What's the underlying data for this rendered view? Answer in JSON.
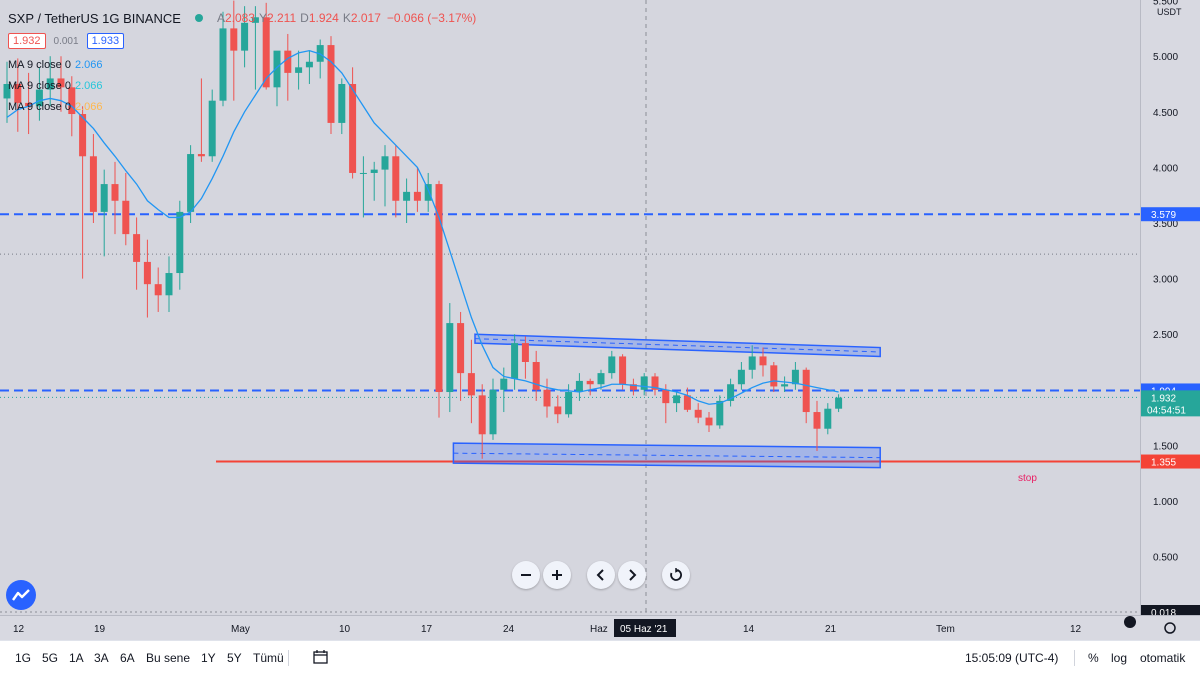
{
  "header": {
    "symbol": "SXP / TetherUS  1G  BINANCE",
    "ohlc": {
      "a_lbl": "A",
      "a": "2.083",
      "y_lbl": "Y",
      "y": "2.211",
      "d_lbl": "D",
      "d": "1.924",
      "k_lbl": "K",
      "k": "2.017",
      "chg": "−0.066 (−3.17%)"
    },
    "sell_price": "1.932",
    "spread": "0.001",
    "buy_price": "1.933"
  },
  "indicators": [
    {
      "label": "MA 9 close 0",
      "value": "2.066",
      "color": "#2196f3"
    },
    {
      "label": "MA 9 close 0",
      "value": "2.066",
      "color": "#26c6da"
    },
    {
      "label": "MA 9 close 0",
      "value": "2.066",
      "color": "#ffb74d"
    }
  ],
  "price_axis": {
    "currency": "USDT",
    "ticks": [
      "5.500",
      "5.000",
      "4.500",
      "4.000",
      "3.500",
      "3.000",
      "2.500",
      "2.000",
      "1.500",
      "1.000",
      "0.500"
    ],
    "bottom_tick": "0.018"
  },
  "price_labels": {
    "line_3579": "3.579",
    "line_1994": "1.994",
    "current_price": "1.932",
    "countdown": "04:54:51",
    "stop_price": "1.355"
  },
  "annotations": {
    "stop_text": "stop"
  },
  "time_axis": {
    "labels": [
      "12",
      "19",
      "May",
      "10",
      "17",
      "24",
      "Haz",
      "14",
      "21",
      "Tem",
      "12"
    ],
    "crosshair_date": "05 Haz '21"
  },
  "bottom_bar": {
    "timeframes": [
      "1G",
      "5G",
      "1A",
      "3A",
      "6A",
      "Bu sene",
      "1Y",
      "5Y",
      "Tümü"
    ],
    "clock": "15:05:09 (UTC-4)",
    "percent": "%",
    "log": "log",
    "auto": "otomatik"
  },
  "colors": {
    "up": "#26a69a",
    "down": "#ef5350",
    "ma": "#2196f3",
    "hline": "#2962ff",
    "stop": "#f44336",
    "channel": "#2962ff"
  },
  "chart_data": {
    "type": "candlestick",
    "title": "SXP / TetherUS  1G  BINANCE",
    "interval": "1 day",
    "ylim": [
      0.018,
      5.55
    ],
    "candles": [
      {
        "o": 4.62,
        "h": 4.95,
        "l": 4.4,
        "c": 4.75
      },
      {
        "o": 4.75,
        "h": 4.98,
        "l": 4.32,
        "c": 4.58
      },
      {
        "o": 4.58,
        "h": 4.85,
        "l": 4.3,
        "c": 4.55
      },
      {
        "o": 4.55,
        "h": 4.9,
        "l": 4.42,
        "c": 4.7
      },
      {
        "o": 4.7,
        "h": 5.0,
        "l": 4.55,
        "c": 4.8
      },
      {
        "o": 4.8,
        "h": 5.0,
        "l": 4.5,
        "c": 4.72
      },
      {
        "o": 4.72,
        "h": 4.82,
        "l": 4.28,
        "c": 4.48
      },
      {
        "o": 4.48,
        "h": 4.55,
        "l": 3.0,
        "c": 4.1
      },
      {
        "o": 4.1,
        "h": 4.3,
        "l": 3.5,
        "c": 3.6
      },
      {
        "o": 3.6,
        "h": 3.98,
        "l": 3.2,
        "c": 3.85
      },
      {
        "o": 3.85,
        "h": 4.05,
        "l": 3.4,
        "c": 3.7
      },
      {
        "o": 3.7,
        "h": 3.95,
        "l": 3.3,
        "c": 3.4
      },
      {
        "o": 3.4,
        "h": 3.55,
        "l": 2.9,
        "c": 3.15
      },
      {
        "o": 3.15,
        "h": 3.35,
        "l": 2.65,
        "c": 2.95
      },
      {
        "o": 2.95,
        "h": 3.1,
        "l": 2.7,
        "c": 2.85
      },
      {
        "o": 2.85,
        "h": 3.2,
        "l": 2.7,
        "c": 3.05
      },
      {
        "o": 3.05,
        "h": 3.7,
        "l": 2.9,
        "c": 3.6
      },
      {
        "o": 3.6,
        "h": 4.2,
        "l": 3.5,
        "c": 4.12
      },
      {
        "o": 4.12,
        "h": 4.8,
        "l": 4.05,
        "c": 4.1
      },
      {
        "o": 4.1,
        "h": 4.7,
        "l": 4.05,
        "c": 4.6
      },
      {
        "o": 4.6,
        "h": 5.4,
        "l": 4.55,
        "c": 5.25
      },
      {
        "o": 5.25,
        "h": 5.5,
        "l": 4.6,
        "c": 5.05
      },
      {
        "o": 5.05,
        "h": 5.45,
        "l": 4.9,
        "c": 5.3
      },
      {
        "o": 5.3,
        "h": 5.45,
        "l": 4.7,
        "c": 5.35
      },
      {
        "o": 5.35,
        "h": 5.48,
        "l": 4.7,
        "c": 4.72
      },
      {
        "o": 4.72,
        "h": 5.0,
        "l": 4.55,
        "c": 5.05
      },
      {
        "o": 5.05,
        "h": 5.2,
        "l": 4.6,
        "c": 4.85
      },
      {
        "o": 4.85,
        "h": 5.05,
        "l": 4.7,
        "c": 4.9
      },
      {
        "o": 4.9,
        "h": 5.05,
        "l": 4.75,
        "c": 4.95
      },
      {
        "o": 4.95,
        "h": 5.15,
        "l": 4.8,
        "c": 5.1
      },
      {
        "o": 5.1,
        "h": 5.18,
        "l": 4.3,
        "c": 4.4
      },
      {
        "o": 4.4,
        "h": 4.8,
        "l": 4.3,
        "c": 4.75
      },
      {
        "o": 4.75,
        "h": 4.9,
        "l": 3.9,
        "c": 3.95
      },
      {
        "o": 3.95,
        "h": 4.1,
        "l": 3.55,
        "c": 3.95
      },
      {
        "o": 3.95,
        "h": 4.05,
        "l": 3.7,
        "c": 3.98
      },
      {
        "o": 3.98,
        "h": 4.2,
        "l": 3.65,
        "c": 4.1
      },
      {
        "o": 4.1,
        "h": 4.2,
        "l": 3.55,
        "c": 3.7
      },
      {
        "o": 3.7,
        "h": 3.9,
        "l": 3.5,
        "c": 3.78
      },
      {
        "o": 3.78,
        "h": 4.0,
        "l": 3.6,
        "c": 3.7
      },
      {
        "o": 3.7,
        "h": 3.95,
        "l": 3.6,
        "c": 3.85
      },
      {
        "o": 3.85,
        "h": 3.88,
        "l": 1.75,
        "c": 1.98
      },
      {
        "o": 1.98,
        "h": 2.78,
        "l": 1.8,
        "c": 2.6
      },
      {
        "o": 2.6,
        "h": 2.7,
        "l": 1.9,
        "c": 2.15
      },
      {
        "o": 2.15,
        "h": 2.45,
        "l": 1.7,
        "c": 1.95
      },
      {
        "o": 1.95,
        "h": 2.05,
        "l": 1.38,
        "c": 1.6
      },
      {
        "o": 1.6,
        "h": 2.1,
        "l": 1.55,
        "c": 2.0
      },
      {
        "o": 2.0,
        "h": 2.2,
        "l": 1.8,
        "c": 2.1
      },
      {
        "o": 2.1,
        "h": 2.5,
        "l": 2.0,
        "c": 2.42
      },
      {
        "o": 2.42,
        "h": 2.48,
        "l": 2.1,
        "c": 2.25
      },
      {
        "o": 2.25,
        "h": 2.35,
        "l": 1.9,
        "c": 2.0
      },
      {
        "o": 2.0,
        "h": 2.1,
        "l": 1.75,
        "c": 1.85
      },
      {
        "o": 1.85,
        "h": 1.95,
        "l": 1.7,
        "c": 1.78
      },
      {
        "o": 1.78,
        "h": 2.05,
        "l": 1.75,
        "c": 1.98
      },
      {
        "o": 1.98,
        "h": 2.15,
        "l": 1.9,
        "c": 2.08
      },
      {
        "o": 2.08,
        "h": 2.1,
        "l": 1.95,
        "c": 2.05
      },
      {
        "o": 2.05,
        "h": 2.18,
        "l": 2.0,
        "c": 2.15
      },
      {
        "o": 2.15,
        "h": 2.35,
        "l": 2.1,
        "c": 2.3
      },
      {
        "o": 2.3,
        "h": 2.32,
        "l": 2.0,
        "c": 2.05
      },
      {
        "o": 2.05,
        "h": 2.1,
        "l": 1.95,
        "c": 2.0
      },
      {
        "o": 2.0,
        "h": 2.15,
        "l": 1.95,
        "c": 2.12
      },
      {
        "o": 2.12,
        "h": 2.15,
        "l": 1.95,
        "c": 2.0
      },
      {
        "o": 2.0,
        "h": 2.05,
        "l": 1.7,
        "c": 1.88
      },
      {
        "o": 1.88,
        "h": 1.98,
        "l": 1.8,
        "c": 1.95
      },
      {
        "o": 1.95,
        "h": 2.02,
        "l": 1.8,
        "c": 1.82
      },
      {
        "o": 1.82,
        "h": 1.88,
        "l": 1.7,
        "c": 1.75
      },
      {
        "o": 1.75,
        "h": 1.8,
        "l": 1.62,
        "c": 1.68
      },
      {
        "o": 1.68,
        "h": 1.95,
        "l": 1.65,
        "c": 1.9
      },
      {
        "o": 1.9,
        "h": 2.1,
        "l": 1.85,
        "c": 2.05
      },
      {
        "o": 2.05,
        "h": 2.25,
        "l": 2.0,
        "c": 2.18
      },
      {
        "o": 2.18,
        "h": 2.4,
        "l": 2.1,
        "c": 2.3
      },
      {
        "o": 2.3,
        "h": 2.38,
        "l": 2.12,
        "c": 2.22
      },
      {
        "o": 2.22,
        "h": 2.25,
        "l": 1.98,
        "c": 2.03
      },
      {
        "o": 2.03,
        "h": 2.12,
        "l": 1.98,
        "c": 2.05
      },
      {
        "o": 2.05,
        "h": 2.25,
        "l": 2.0,
        "c": 2.18
      },
      {
        "o": 2.18,
        "h": 2.2,
        "l": 1.7,
        "c": 1.8
      },
      {
        "o": 1.8,
        "h": 1.9,
        "l": 1.45,
        "c": 1.65
      },
      {
        "o": 1.65,
        "h": 1.88,
        "l": 1.6,
        "c": 1.83
      },
      {
        "o": 1.83,
        "h": 1.96,
        "l": 1.8,
        "c": 1.93
      }
    ],
    "ma9": [
      4.45,
      4.52,
      4.55,
      4.6,
      4.62,
      4.6,
      4.55,
      4.45,
      4.35,
      4.22,
      4.1,
      3.97,
      3.85,
      3.7,
      3.62,
      3.55,
      3.55,
      3.6,
      3.72,
      3.9,
      4.1,
      4.32,
      4.5,
      4.65,
      4.8,
      4.9,
      4.98,
      5.03,
      5.05,
      5.02,
      4.95,
      4.85,
      4.7,
      4.55,
      4.4,
      4.3,
      4.2,
      4.1,
      4.0,
      3.8,
      3.55,
      3.25,
      2.95,
      2.65,
      2.4,
      2.2,
      2.12,
      2.1,
      2.08,
      2.05,
      2.02,
      2.0,
      1.99,
      1.98,
      2.0,
      2.02,
      2.05,
      2.05,
      2.04,
      2.03,
      2.02,
      2.0,
      1.98,
      1.95,
      1.9,
      1.87,
      1.88,
      1.92,
      1.97,
      2.02,
      2.06,
      2.08,
      2.07,
      2.06,
      2.04,
      2.02,
      2.0,
      1.98
    ],
    "horizontal_lines": [
      {
        "value": 3.579,
        "style": "dashed",
        "color": "#2962ff"
      },
      {
        "value": 1.994,
        "style": "dashed",
        "color": "#2962ff"
      },
      {
        "value": 1.355,
        "style": "solid",
        "color": "#f44336",
        "label": "stop"
      },
      {
        "value": 3.22,
        "style": "dotted",
        "color": "#787b86"
      },
      {
        "value": 1.932,
        "style": "dotted",
        "color": "#26a69a"
      }
    ],
    "channels": [
      {
        "name": "upper",
        "start_idx": 45,
        "end_idx": 79,
        "start_top": 2.5,
        "start_bottom": 2.42,
        "end_top": 2.38,
        "end_bottom": 2.3
      },
      {
        "name": "lower",
        "start_idx": 43,
        "end_idx": 79,
        "start_top": 1.52,
        "start_bottom": 1.34,
        "end_top": 1.48,
        "end_bottom": 1.3
      }
    ]
  }
}
